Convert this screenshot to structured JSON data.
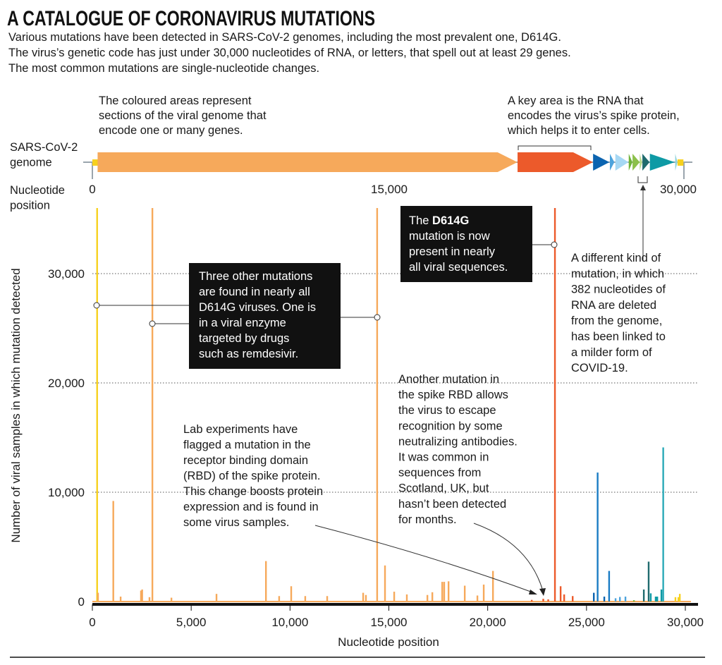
{
  "title": "A CATALOGUE OF CORONAVIRUS MUTATIONS",
  "subtitle": [
    "Various mutations have been detected in SARS-CoV-2 genomes, including the most prevalent one, D614G.",
    "The virus’s genetic code has just under 30,000 nucleotides of RNA, or letters, that spell out at least 29 genes.",
    "The most common mutations are single-nucleotide changes."
  ],
  "genome": {
    "label": [
      "SARS-CoV-2",
      "genome"
    ],
    "position_label": [
      "Nucleotide",
      "position"
    ],
    "ticks": [
      "0",
      "15,000",
      "30,000"
    ],
    "note_coloured": [
      "The coloured areas represent",
      "sections of the viral genome that",
      "encode one or many genes."
    ],
    "note_spike": [
      "A key area is the RNA that",
      "encodes the virus’s spike protein,",
      "which helps it to enter cells."
    ],
    "segments": [
      {
        "start": 0,
        "end": 265,
        "color": "#f7d11e",
        "shape": "box"
      },
      {
        "start": 266,
        "end": 21555,
        "color": "#f6a95b",
        "shape": "arrow"
      },
      {
        "start": 21563,
        "end": 25384,
        "color": "#ec5a2b",
        "shape": "arrow"
      },
      {
        "start": 25393,
        "end": 26220,
        "color": "#0c64b0",
        "shape": "tri"
      },
      {
        "start": 26245,
        "end": 26472,
        "color": "#4da3dc",
        "shape": "tri"
      },
      {
        "start": 26523,
        "end": 27191,
        "color": "#a6d8f4",
        "shape": "tri"
      },
      {
        "start": 27202,
        "end": 27387,
        "color": "#6fb33a",
        "shape": "tri"
      },
      {
        "start": 27394,
        "end": 27759,
        "color": "#8cc04a",
        "shape": "tri"
      },
      {
        "start": 27756,
        "end": 27887,
        "color": "#b6d98a",
        "shape": "tri"
      },
      {
        "start": 27894,
        "end": 28259,
        "color": "#1f6b6e",
        "shape": "tri"
      },
      {
        "start": 28274,
        "end": 29533,
        "color": "#0e9aa5",
        "shape": "tri"
      },
      {
        "start": 29558,
        "end": 29674,
        "color": "#8fd3da",
        "shape": "tri"
      },
      {
        "start": 29675,
        "end": 29903,
        "color": "#f7d11e",
        "shape": "box"
      }
    ]
  },
  "annotations": {
    "d614g": [
      "The ",
      "D614G",
      "mutation is now",
      "present in nearly",
      "all viral sequences."
    ],
    "three_others": [
      "Three other mutations",
      "are found in nearly all",
      "D614G viruses. One is",
      "in a viral enzyme",
      "targeted by drugs",
      "such as remdesivir."
    ],
    "deletion": [
      "A different kind of",
      "mutation, in which",
      "382 nucleotides of",
      "RNA are deleted",
      "from the genome,",
      "has been linked to",
      "a milder form of",
      "COVID-19."
    ],
    "scotland": [
      "Another mutation in",
      "the spike RBD allows",
      "the virus to escape",
      "recognition by some",
      "neutralizing antibodies.",
      "It was common in",
      "sequences from",
      "Scotland, UK, but",
      "hasn’t been detected",
      "for months."
    ],
    "rbd": [
      "Lab experiments have",
      "flagged a mutation in the",
      "receptor binding domain",
      "(RBD) of the spike protein.",
      "This change boosts protein",
      "expression and is found in",
      "some virus samples."
    ]
  },
  "chart_data": {
    "type": "bar",
    "xlabel": "Nucleotide position",
    "ylabel": "Number of viral samples in which mutation detected",
    "xlim": [
      0,
      30000
    ],
    "ylim": [
      0,
      36000
    ],
    "x_ticks": [
      "0",
      "5,000",
      "10,000",
      "15,000",
      "20,000",
      "25,000",
      "30,000"
    ],
    "y_ticks": [
      "0",
      "10,000",
      "20,000",
      "30,000"
    ],
    "grid": "horizontal dotted",
    "bars": [
      {
        "x": 241,
        "y": 36000,
        "color": "#f7d11e"
      },
      {
        "x": 285,
        "y": 800,
        "color": "#f6a95b"
      },
      {
        "x": 1059,
        "y": 9200,
        "color": "#f6a95b"
      },
      {
        "x": 1430,
        "y": 450,
        "color": "#f6a95b"
      },
      {
        "x": 2460,
        "y": 1000,
        "color": "#f6a95b"
      },
      {
        "x": 2520,
        "y": 1100,
        "color": "#f6a95b"
      },
      {
        "x": 2890,
        "y": 400,
        "color": "#f6a95b"
      },
      {
        "x": 3037,
        "y": 36000,
        "color": "#f6a95b"
      },
      {
        "x": 4000,
        "y": 350,
        "color": "#f6a95b"
      },
      {
        "x": 6280,
        "y": 700,
        "color": "#f6a95b"
      },
      {
        "x": 8782,
        "y": 3700,
        "color": "#f6a95b"
      },
      {
        "x": 9450,
        "y": 500,
        "color": "#f6a95b"
      },
      {
        "x": 10060,
        "y": 1400,
        "color": "#f6a95b"
      },
      {
        "x": 10770,
        "y": 500,
        "color": "#f6a95b"
      },
      {
        "x": 11880,
        "y": 500,
        "color": "#f6a95b"
      },
      {
        "x": 13700,
        "y": 800,
        "color": "#f6a95b"
      },
      {
        "x": 13840,
        "y": 600,
        "color": "#f6a95b"
      },
      {
        "x": 14408,
        "y": 36000,
        "color": "#f6a95b"
      },
      {
        "x": 14805,
        "y": 3300,
        "color": "#f6a95b"
      },
      {
        "x": 15270,
        "y": 900,
        "color": "#f6a95b"
      },
      {
        "x": 15910,
        "y": 650,
        "color": "#f6a95b"
      },
      {
        "x": 16950,
        "y": 600,
        "color": "#f6a95b"
      },
      {
        "x": 17200,
        "y": 850,
        "color": "#f6a95b"
      },
      {
        "x": 17700,
        "y": 1800,
        "color": "#f6a95b"
      },
      {
        "x": 17800,
        "y": 1800,
        "color": "#f6a95b"
      },
      {
        "x": 18020,
        "y": 1850,
        "color": "#f6a95b"
      },
      {
        "x": 18840,
        "y": 1450,
        "color": "#f6a95b"
      },
      {
        "x": 19480,
        "y": 550,
        "color": "#f6a95b"
      },
      {
        "x": 19800,
        "y": 1550,
        "color": "#f6a95b"
      },
      {
        "x": 20268,
        "y": 2800,
        "color": "#f6a95b"
      },
      {
        "x": 22230,
        "y": 150,
        "color": "#ec5a2b"
      },
      {
        "x": 22812,
        "y": 250,
        "color": "#ec5a2b"
      },
      {
        "x": 23063,
        "y": 200,
        "color": "#ec5a2b"
      },
      {
        "x": 23403,
        "y": 36000,
        "color": "#ec5a2b"
      },
      {
        "x": 23690,
        "y": 1400,
        "color": "#ec5a2b"
      },
      {
        "x": 23870,
        "y": 650,
        "color": "#ec5a2b"
      },
      {
        "x": 24300,
        "y": 500,
        "color": "#ec5a2b"
      },
      {
        "x": 25370,
        "y": 800,
        "color": "#0c64b0"
      },
      {
        "x": 25563,
        "y": 11800,
        "color": "#1a7cc4"
      },
      {
        "x": 25900,
        "y": 450,
        "color": "#0c64b0"
      },
      {
        "x": 26144,
        "y": 2800,
        "color": "#1a7cc4"
      },
      {
        "x": 26470,
        "y": 300,
        "color": "#4da3dc"
      },
      {
        "x": 26690,
        "y": 420,
        "color": "#4da3dc"
      },
      {
        "x": 26970,
        "y": 450,
        "color": "#4da3dc"
      },
      {
        "x": 27400,
        "y": 120,
        "color": "#6fb33a"
      },
      {
        "x": 27900,
        "y": 1100,
        "color": "#1f6b6e"
      },
      {
        "x": 28144,
        "y": 3650,
        "color": "#1f6b6e"
      },
      {
        "x": 28250,
        "y": 750,
        "color": "#0e9aa5"
      },
      {
        "x": 28500,
        "y": 450,
        "color": "#0e9aa5"
      },
      {
        "x": 28580,
        "y": 450,
        "color": "#0e9aa5"
      },
      {
        "x": 28790,
        "y": 1100,
        "color": "#0e9aa5"
      },
      {
        "x": 28881,
        "y": 14100,
        "color": "#2aaab8"
      },
      {
        "x": 29500,
        "y": 400,
        "color": "#f7d11e"
      },
      {
        "x": 29650,
        "y": 400,
        "color": "#f7d11e"
      },
      {
        "x": 29720,
        "y": 700,
        "color": "#f7d11e"
      }
    ]
  }
}
